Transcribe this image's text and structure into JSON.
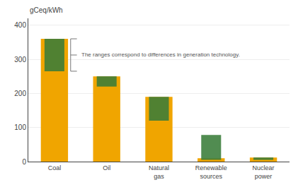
{
  "chart_data": {
    "type": "bar",
    "categories": [
      "Coal",
      "Oil",
      "Natural\ngas",
      "Renewable\nsources",
      "Nuclear\npower"
    ],
    "ylabel": "gCeq/kWh",
    "annotation": "The ranges correspond to differences in generation technology.",
    "series": [
      {
        "color": "#F0A500",
        "values": [
          360,
          250,
          190,
          10,
          12
        ]
      },
      {
        "color": "#3A7D3A",
        "bottoms": [
          265,
          220,
          120,
          5,
          5
        ],
        "values": [
          360,
          250,
          190,
          78,
          12
        ]
      }
    ],
    "ylim": [
      0,
      420
    ],
    "yticks": [
      0,
      100,
      200,
      300,
      400
    ],
    "grid": true
  }
}
